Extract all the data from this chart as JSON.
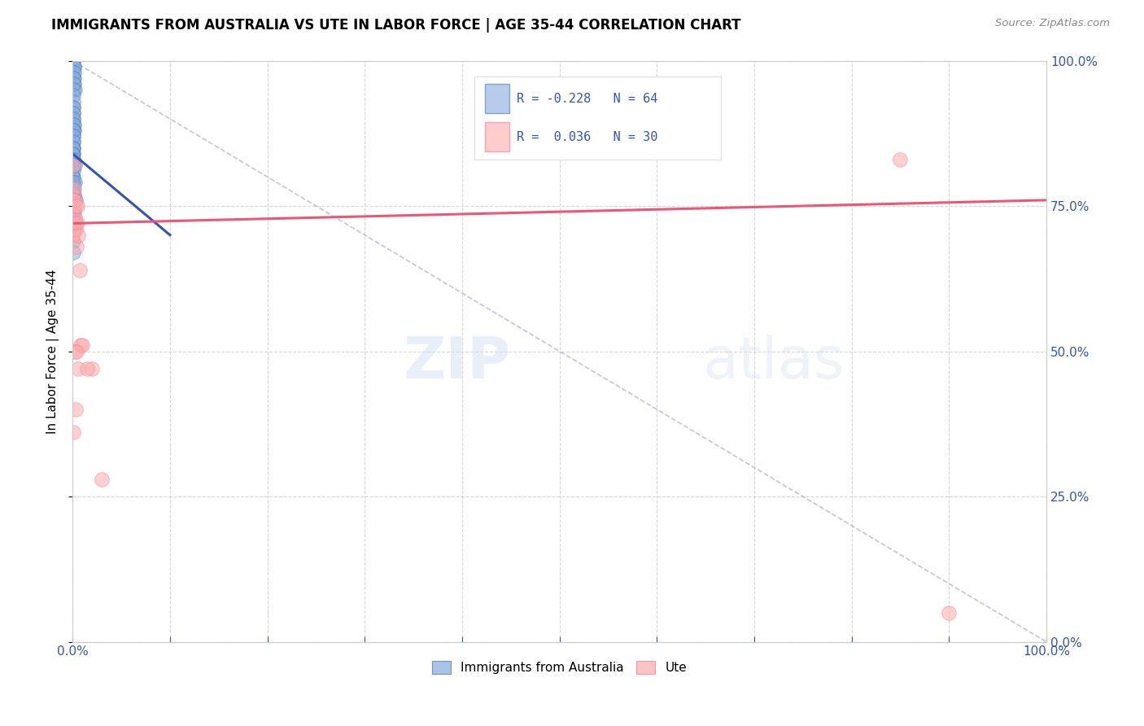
{
  "title": "IMMIGRANTS FROM AUSTRALIA VS UTE IN LABOR FORCE | AGE 35-44 CORRELATION CHART",
  "source": "Source: ZipAtlas.com",
  "ylabel": "In Labor Force | Age 35-44",
  "x_tick_vals": [
    0,
    10,
    20,
    30,
    40,
    50,
    60,
    70,
    80,
    90,
    100
  ],
  "x_label_vals": [
    0,
    100
  ],
  "y_tick_vals": [
    0,
    25,
    50,
    75,
    100
  ],
  "legend_label1": "Immigrants from Australia",
  "legend_label2": "Ute",
  "R1": "-0.228",
  "N1": "64",
  "R2": "0.036",
  "N2": "30",
  "blue_color": "#88AADD",
  "pink_color": "#FFAAAA",
  "blue_edge_color": "#4477BB",
  "pink_edge_color": "#EE7799",
  "blue_line_color": "#3355AA",
  "pink_line_color": "#EE5577",
  "blue_scatter_x": [
    0.05,
    0.08,
    0.1,
    0.12,
    0.1,
    0.14,
    0.15,
    0.16,
    0.18,
    0.2,
    0.05,
    0.06,
    0.07,
    0.08,
    0.09,
    0.1,
    0.1,
    0.11,
    0.12,
    0.13,
    0.04,
    0.05,
    0.05,
    0.06,
    0.07,
    0.07,
    0.08,
    0.09,
    0.1,
    0.11,
    0.03,
    0.04,
    0.04,
    0.05,
    0.05,
    0.06,
    0.07,
    0.08,
    0.1,
    0.12,
    0.02,
    0.02,
    0.03,
    0.03,
    0.04,
    0.06,
    0.07,
    0.09,
    0.11,
    0.14,
    0.01,
    0.01,
    0.02,
    0.02,
    0.03,
    0.04,
    0.05,
    0.06,
    0.08,
    0.1,
    0.2,
    0.25,
    0.3,
    0.35
  ],
  "blue_scatter_y": [
    100,
    99,
    100,
    99,
    98,
    99,
    97,
    98,
    96,
    95,
    97,
    96,
    95,
    94,
    93,
    92,
    91,
    90,
    89,
    88,
    92,
    91,
    90,
    89,
    88,
    87,
    86,
    85,
    84,
    83,
    88,
    87,
    86,
    85,
    84,
    83,
    82,
    80,
    79,
    77,
    85,
    84,
    83,
    82,
    81,
    79,
    78,
    76,
    74,
    71,
    80,
    79,
    78,
    77,
    76,
    74,
    73,
    71,
    69,
    67,
    82,
    79,
    76,
    72
  ],
  "pink_scatter_x": [
    0.02,
    0.05,
    0.08,
    0.1,
    0.12,
    0.15,
    0.18,
    0.2,
    0.22,
    0.25,
    0.3,
    0.35,
    0.4,
    0.5,
    0.6,
    0.8,
    1.0,
    2.0,
    0.08,
    0.12,
    0.2,
    0.4,
    0.6,
    85.0,
    90.0,
    0.3,
    0.5,
    0.7,
    1.5,
    3.0
  ],
  "pink_scatter_y": [
    70,
    75,
    77,
    82,
    78,
    74,
    71,
    76,
    73,
    72,
    75,
    71,
    68,
    72,
    70,
    51,
    51,
    47,
    36,
    76,
    50,
    50,
    47,
    83,
    5,
    40,
    75,
    64,
    47,
    28
  ],
  "blue_trend_x": [
    0.0,
    10.0
  ],
  "blue_trend_y": [
    84.0,
    70.0
  ],
  "pink_trend_x": [
    0.0,
    100.0
  ],
  "pink_trend_y": [
    72.0,
    76.0
  ],
  "diag_line_x": [
    0.0,
    100.0
  ],
  "diag_line_y": [
    100.0,
    0.0
  ]
}
